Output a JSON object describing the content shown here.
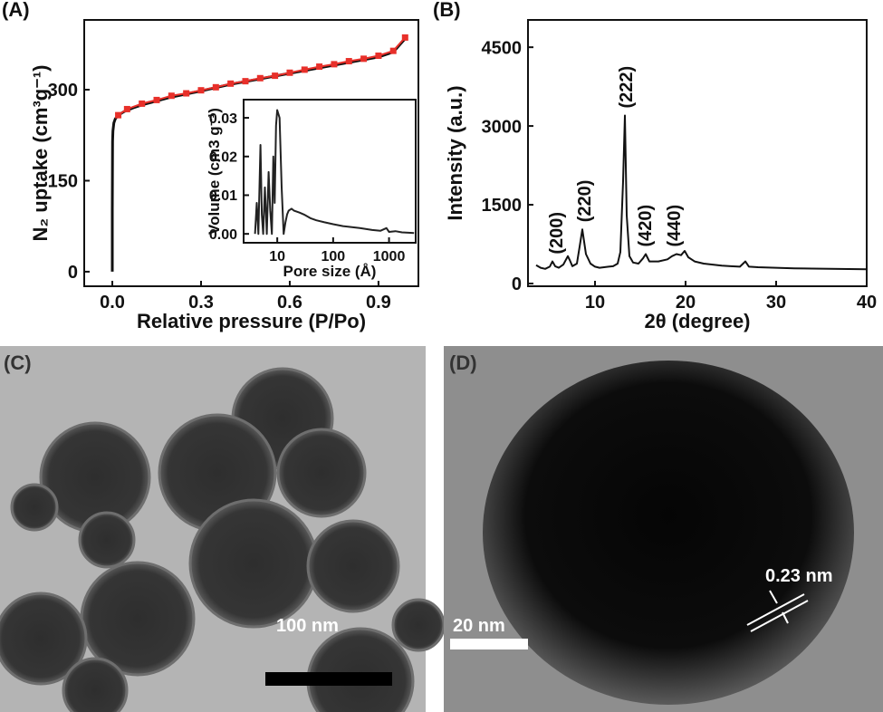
{
  "chart_data": [
    {
      "type": "line",
      "label": "(A)",
      "x_label": "Relative pressure (P/Po)",
      "y_label": "N₂ uptake (cm³g⁻¹)",
      "xlim": [
        -0.095,
        1.035
      ],
      "ylim": [
        -24,
        415
      ],
      "xticks": [
        {
          "value": 0,
          "label": "0.0"
        },
        0.3,
        0.6,
        0.9
      ],
      "yticks": [
        0,
        150,
        300
      ],
      "series": [
        {
          "color": "#111111",
          "marker": "none",
          "x": [
            0,
            0,
            0.0005,
            0.001,
            0.002,
            0.005,
            0.01,
            0.02,
            0.04,
            0.07,
            0.1,
            0.2,
            0.3,
            0.4,
            0.5,
            0.6,
            0.7,
            0.8,
            0.9,
            0.95,
            0.99
          ],
          "values": [
            0,
            100,
            180,
            215,
            232,
            245,
            252,
            258,
            264,
            270,
            275,
            288,
            298,
            309,
            318,
            327,
            336,
            345,
            354,
            362,
            384
          ]
        },
        {
          "color": "#e8302a",
          "marker": "square",
          "x": [
            0.02,
            0.05,
            0.1,
            0.15,
            0.2,
            0.25,
            0.3,
            0.35,
            0.4,
            0.45,
            0.5,
            0.55,
            0.6,
            0.65,
            0.7,
            0.75,
            0.8,
            0.85,
            0.9,
            0.95,
            0.99
          ],
          "values": [
            258,
            268,
            277,
            283,
            290,
            294,
            299,
            304,
            310,
            314,
            319,
            323,
            328,
            333,
            338,
            342,
            347,
            351,
            356,
            364,
            386
          ]
        }
      ]
    },
    {
      "type": "line",
      "x_label": "Pore size (Å)",
      "y_label": "Volume (cm3 g⁻¹)",
      "xlog": true,
      "xlim": [
        2.5,
        3000
      ],
      "ylim": [
        -0.0023,
        0.0347
      ],
      "xticks": [
        10,
        100,
        1000
      ],
      "yticks": [
        {
          "value": 0,
          "label": "0.00"
        },
        0.01,
        0.02,
        0.03
      ],
      "series": [
        {
          "color": "#222222",
          "marker": "none",
          "x": [
            4,
            4.3,
            4.6,
            5,
            5.3,
            5.6,
            6,
            6.5,
            7,
            7.5,
            8,
            8.5,
            9,
            9.5,
            10,
            11,
            12,
            13,
            14,
            15,
            16,
            18,
            20,
            25,
            30,
            40,
            50,
            70,
            100,
            150,
            200,
            300,
            500,
            700,
            900,
            1000,
            1300,
            1700,
            2200,
            2800
          ],
          "values": [
            0.0,
            0.008,
            0.0,
            0.023,
            0.005,
            0.0,
            0.012,
            0.0,
            0.016,
            0.006,
            0.0,
            0.02,
            0.008,
            0.028,
            0.032,
            0.03,
            0.012,
            0.0,
            0.003,
            0.005,
            0.006,
            0.0065,
            0.006,
            0.0055,
            0.005,
            0.004,
            0.0035,
            0.003,
            0.0025,
            0.002,
            0.0018,
            0.0015,
            0.001,
            0.0008,
            0.0015,
            0.0005,
            0.0007,
            0.0004,
            0.0003,
            0.0002
          ]
        }
      ]
    },
    {
      "type": "line",
      "label": "(B)",
      "x_label": "2θ (degree)",
      "y_label": "Intensity (a.u.)",
      "xlim": [
        2.6,
        40
      ],
      "ylim": [
        -52,
        5020
      ],
      "xticks": [
        10,
        20,
        30,
        40
      ],
      "yticks": [
        0,
        1500,
        3000,
        4500
      ],
      "series": [
        {
          "color": "#111111",
          "marker": "none",
          "x": [
            3.5,
            4,
            4.5,
            5,
            5.3,
            5.6,
            6,
            6.5,
            7,
            7.2,
            7.5,
            8,
            8.3,
            8.6,
            9,
            9.5,
            10,
            10.5,
            11,
            11.5,
            12,
            12.5,
            12.8,
            13.1,
            13.3,
            13.5,
            13.8,
            14.2,
            14.8,
            15.3,
            15.6,
            16,
            17,
            18,
            18.5,
            19,
            19.5,
            19.9,
            20.3,
            21,
            22,
            23,
            24,
            25,
            26,
            26.6,
            27,
            28,
            30,
            32,
            34,
            36,
            38,
            40
          ],
          "values": [
            350,
            300,
            280,
            320,
            420,
            330,
            300,
            360,
            520,
            450,
            330,
            380,
            700,
            1030,
            560,
            380,
            320,
            300,
            310,
            320,
            330,
            380,
            600,
            1950,
            3200,
            1300,
            520,
            400,
            380,
            480,
            560,
            420,
            420,
            460,
            520,
            560,
            540,
            620,
            500,
            420,
            380,
            360,
            340,
            330,
            320,
            420,
            320,
            310,
            300,
            290,
            285,
            280,
            275,
            270
          ]
        }
      ],
      "annotations": [
        {
          "text": "(200)",
          "x": 5.7
        },
        {
          "text": "(220)",
          "x": 8.8
        },
        {
          "text": "(222)",
          "x": 13.4
        },
        {
          "text": "(420)",
          "x": 15.5
        },
        {
          "text": "(440)",
          "x": 18.7
        }
      ]
    }
  ],
  "images": [
    {
      "label": "(C)",
      "scale_bar": "100 nm"
    },
    {
      "label": "(D)",
      "scale_bar": "20 nm",
      "annotation": "0.23 nm"
    }
  ]
}
